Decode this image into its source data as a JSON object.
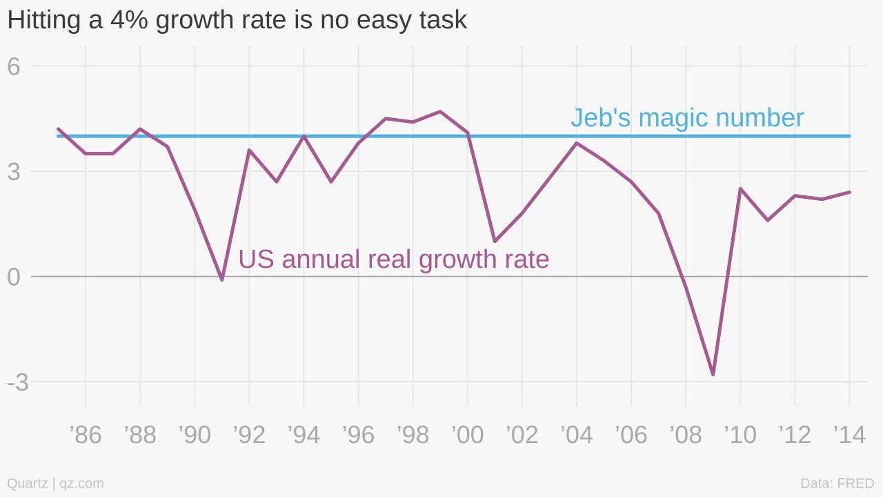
{
  "chart_data": {
    "type": "line",
    "title": "Hitting a 4% growth rate is no easy task",
    "xlabel": "",
    "ylabel": "",
    "xlim": [
      1985,
      2014
    ],
    "ylim": [
      -3,
      6
    ],
    "y_ticks": [
      "6",
      "3",
      "0",
      "-3"
    ],
    "y_tick_values": [
      6,
      3,
      0,
      -3
    ],
    "x_ticks": [
      "’86",
      "’88",
      "’90",
      "’92",
      "’94",
      "’96",
      "’98",
      "’00",
      "’02",
      "’04",
      "’06",
      "’08",
      "’10",
      "’12",
      "’14"
    ],
    "x_tick_values": [
      1986,
      1988,
      1990,
      1992,
      1994,
      1996,
      1998,
      2000,
      2002,
      2004,
      2006,
      2008,
      2010,
      2012,
      2014
    ],
    "grid": true,
    "series": [
      {
        "name": "US annual real growth rate",
        "color": "#a55a90",
        "x": [
          1985,
          1986,
          1987,
          1988,
          1989,
          1990,
          1991,
          1992,
          1993,
          1994,
          1995,
          1996,
          1997,
          1998,
          1999,
          2000,
          2001,
          2002,
          2003,
          2004,
          2005,
          2006,
          2007,
          2008,
          2009,
          2010,
          2011,
          2012,
          2013,
          2014
        ],
        "values": [
          4.2,
          3.5,
          3.5,
          4.2,
          3.7,
          1.9,
          -0.1,
          3.6,
          2.7,
          4.0,
          2.7,
          3.8,
          4.5,
          4.4,
          4.7,
          4.1,
          1.0,
          1.8,
          2.8,
          3.8,
          3.3,
          2.7,
          1.8,
          -0.3,
          -2.8,
          2.5,
          1.6,
          2.3,
          2.2,
          2.4
        ]
      },
      {
        "name": "Jeb's magic number",
        "color": "#51b2de",
        "x": [
          1985,
          2014
        ],
        "values": [
          4,
          4
        ]
      }
    ]
  },
  "footer": {
    "source_left": "Quartz | qz.com",
    "source_right": "Data: FRED"
  }
}
